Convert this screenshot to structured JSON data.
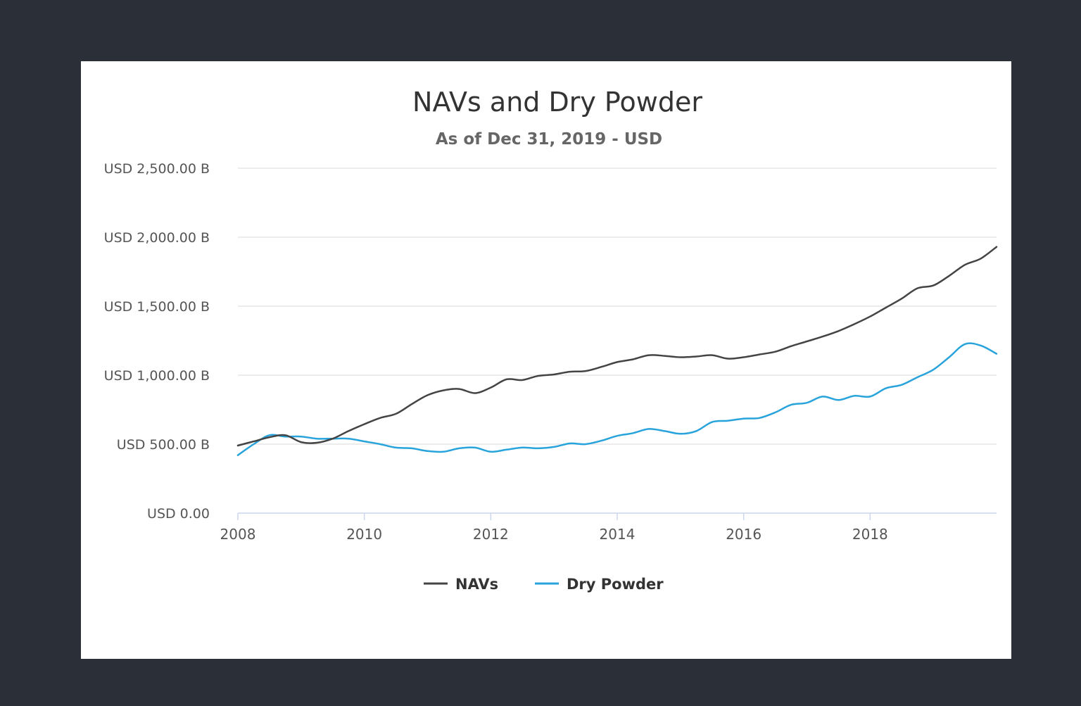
{
  "chart_data": {
    "type": "line",
    "title": "NAVs and Dry Powder",
    "subtitle": "As of Dec 31, 2019 - USD",
    "xlabel": "",
    "ylabel": "",
    "xlim": [
      2008,
      2020
    ],
    "ylim": [
      0,
      2500
    ],
    "x_ticks": [
      2008,
      2010,
      2012,
      2014,
      2016,
      2018
    ],
    "x_tick_labels": [
      "2008",
      "2010",
      "2012",
      "2014",
      "2016",
      "2018"
    ],
    "y_ticks": [
      0,
      500,
      1000,
      1500,
      2000,
      2500
    ],
    "y_tick_labels": [
      "USD 0.00",
      "USD 500.00 B",
      "USD 1,000.00 B",
      "USD 1,500.00 B",
      "USD 2,000.00 B",
      "USD 2,500.00 B"
    ],
    "grid": "horizontal",
    "legend_position": "bottom-center",
    "series": [
      {
        "name": "NAVs",
        "color": "#444444",
        "points": [
          [
            2008.0,
            490
          ],
          [
            2008.25,
            520
          ],
          [
            2008.5,
            550
          ],
          [
            2008.75,
            565
          ],
          [
            2009.0,
            515
          ],
          [
            2009.25,
            510
          ],
          [
            2009.5,
            540
          ],
          [
            2009.75,
            595
          ],
          [
            2010.0,
            645
          ],
          [
            2010.25,
            690
          ],
          [
            2010.5,
            720
          ],
          [
            2010.75,
            790
          ],
          [
            2011.0,
            855
          ],
          [
            2011.25,
            890
          ],
          [
            2011.5,
            900
          ],
          [
            2011.75,
            870
          ],
          [
            2012.0,
            910
          ],
          [
            2012.25,
            970
          ],
          [
            2012.5,
            965
          ],
          [
            2012.75,
            995
          ],
          [
            2013.0,
            1005
          ],
          [
            2013.25,
            1025
          ],
          [
            2013.5,
            1030
          ],
          [
            2013.75,
            1060
          ],
          [
            2014.0,
            1095
          ],
          [
            2014.25,
            1115
          ],
          [
            2014.5,
            1145
          ],
          [
            2014.75,
            1140
          ],
          [
            2015.0,
            1130
          ],
          [
            2015.25,
            1135
          ],
          [
            2015.5,
            1145
          ],
          [
            2015.75,
            1120
          ],
          [
            2016.0,
            1130
          ],
          [
            2016.25,
            1150
          ],
          [
            2016.5,
            1170
          ],
          [
            2016.75,
            1210
          ],
          [
            2017.0,
            1245
          ],
          [
            2017.25,
            1280
          ],
          [
            2017.5,
            1320
          ],
          [
            2017.75,
            1370
          ],
          [
            2018.0,
            1425
          ],
          [
            2018.25,
            1490
          ],
          [
            2018.5,
            1555
          ],
          [
            2018.75,
            1630
          ],
          [
            2019.0,
            1650
          ],
          [
            2019.25,
            1720
          ],
          [
            2019.5,
            1800
          ],
          [
            2019.75,
            1845
          ],
          [
            2020.0,
            1930
          ]
        ]
      },
      {
        "name": "Dry Powder",
        "color": "#29a3dc",
        "points": [
          [
            2008.0,
            420
          ],
          [
            2008.25,
            500
          ],
          [
            2008.5,
            565
          ],
          [
            2008.75,
            555
          ],
          [
            2009.0,
            555
          ],
          [
            2009.25,
            540
          ],
          [
            2009.5,
            540
          ],
          [
            2009.75,
            540
          ],
          [
            2010.0,
            520
          ],
          [
            2010.25,
            500
          ],
          [
            2010.5,
            475
          ],
          [
            2010.75,
            470
          ],
          [
            2011.0,
            450
          ],
          [
            2011.25,
            445
          ],
          [
            2011.5,
            470
          ],
          [
            2011.75,
            475
          ],
          [
            2012.0,
            445
          ],
          [
            2012.25,
            460
          ],
          [
            2012.5,
            475
          ],
          [
            2012.75,
            470
          ],
          [
            2013.0,
            480
          ],
          [
            2013.25,
            505
          ],
          [
            2013.5,
            500
          ],
          [
            2013.75,
            525
          ],
          [
            2014.0,
            560
          ],
          [
            2014.25,
            580
          ],
          [
            2014.5,
            610
          ],
          [
            2014.75,
            595
          ],
          [
            2015.0,
            575
          ],
          [
            2015.25,
            595
          ],
          [
            2015.5,
            660
          ],
          [
            2015.75,
            670
          ],
          [
            2016.0,
            685
          ],
          [
            2016.25,
            690
          ],
          [
            2016.5,
            730
          ],
          [
            2016.75,
            785
          ],
          [
            2017.0,
            800
          ],
          [
            2017.25,
            845
          ],
          [
            2017.5,
            820
          ],
          [
            2017.75,
            850
          ],
          [
            2018.0,
            845
          ],
          [
            2018.25,
            905
          ],
          [
            2018.5,
            930
          ],
          [
            2018.75,
            985
          ],
          [
            2019.0,
            1040
          ],
          [
            2019.25,
            1130
          ],
          [
            2019.5,
            1225
          ],
          [
            2019.75,
            1215
          ],
          [
            2020.0,
            1155
          ]
        ]
      }
    ]
  }
}
